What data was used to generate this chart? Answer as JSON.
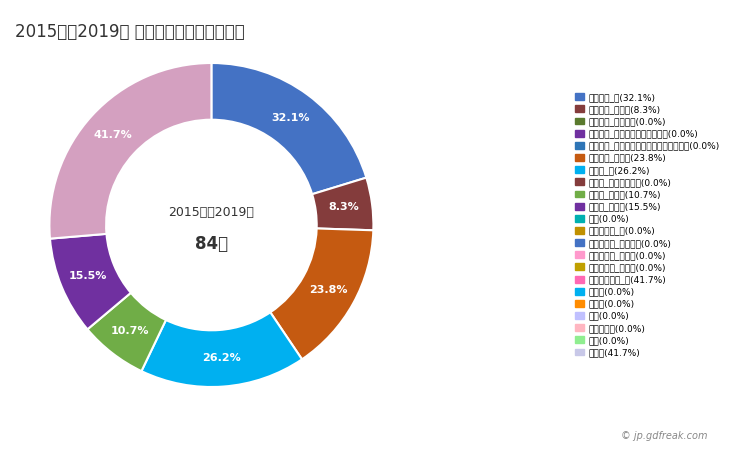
{
  "title": "2015年～2019年 川上村の女性の死因構成",
  "center_text_line1": "2015年～2019年",
  "center_text_line2": "84人",
  "watermark": "© jp.gdfreak.com",
  "slices": [
    {
      "label": "悪性腫瘍_計(32.1%)",
      "value": 32.1,
      "color": "#4472C4"
    },
    {
      "label": "悪性腫瘍_胃がん(8.3%)",
      "value": 8.3,
      "color": "#843C3C"
    },
    {
      "label": "悪性腫瘍_大腸がん(0.0%)",
      "value": 0.0,
      "color": "#5A7A2E"
    },
    {
      "label": "悪性腫瘍_肝がん・肝内胆管がん(0.0%)",
      "value": 0.0,
      "color": "#7030A0"
    },
    {
      "label": "悪性腫瘍_気管がん・気管支がん・肺がん(0.0%)",
      "value": 0.0,
      "color": "#2E75B6"
    },
    {
      "label": "悪性腫瘍_その他(23.8%)",
      "value": 23.8,
      "color": "#C55A11"
    },
    {
      "label": "心疾患_計(26.2%)",
      "value": 26.2,
      "color": "#00B0F0"
    },
    {
      "label": "心疾患_急性心筋梗塞(0.0%)",
      "value": 0.0,
      "color": "#843C3C"
    },
    {
      "label": "心疾患_心不全(10.7%)",
      "value": 10.7,
      "color": "#70AD47"
    },
    {
      "label": "心疾患_その他(15.5%)",
      "value": 15.5,
      "color": "#7030A0"
    },
    {
      "label": "肺炎(0.0%)",
      "value": 0.0,
      "color": "#00B0B0"
    },
    {
      "label": "脳血管疾患_計(0.0%)",
      "value": 0.0,
      "color": "#C09000"
    },
    {
      "label": "脳血管疾患_脳内出血(0.0%)",
      "value": 0.0,
      "color": "#4472C4"
    },
    {
      "label": "脳血管疾患_脳梗塞(0.0%)",
      "value": 0.0,
      "color": "#FF99CC"
    },
    {
      "label": "脳血管疾患_その他(0.0%)",
      "value": 0.0,
      "color": "#C0A000"
    },
    {
      "label": "その他の死因_計(41.7%)",
      "value": 41.7,
      "color": "#FF69B4"
    },
    {
      "label": "肝疾患(0.0%)",
      "value": 0.0,
      "color": "#00B0F0"
    },
    {
      "label": "腎不全(0.0%)",
      "value": 0.0,
      "color": "#FF8C00"
    },
    {
      "label": "老衰(0.0%)",
      "value": 0.0,
      "color": "#C0C0FF"
    },
    {
      "label": "不慮の事故(0.0%)",
      "value": 0.0,
      "color": "#FFB6C1"
    },
    {
      "label": "自殺(0.0%)",
      "value": 0.0,
      "color": "#90EE90"
    },
    {
      "label": "その他(41.7%)",
      "value": 41.7,
      "color": "#C8C8E8"
    }
  ],
  "legend_colors": [
    "#4472C4",
    "#843C3C",
    "#5A7A2E",
    "#7030A0",
    "#2E75B6",
    "#C55A11",
    "#00B0F0",
    "#843C3C",
    "#70AD47",
    "#7030A0",
    "#00B0B0",
    "#C09000",
    "#4472C4",
    "#FF99CC",
    "#C0A000",
    "#FF69B4",
    "#00B0F0",
    "#FF8C00",
    "#C0C0FF",
    "#FFB6C1",
    "#90EE90",
    "#C8C8E8"
  ],
  "bg_color": "#FFFFFF",
  "label_fontsize": 8.5,
  "title_fontsize": 12
}
